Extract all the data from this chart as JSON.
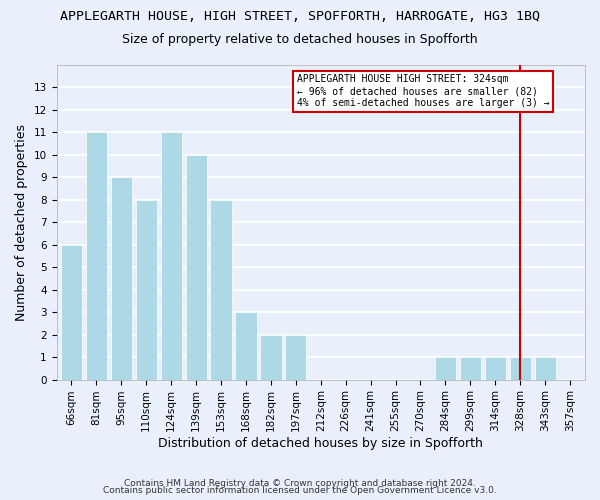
{
  "title": "APPLEGARTH HOUSE, HIGH STREET, SPOFFORTH, HARROGATE, HG3 1BQ",
  "subtitle": "Size of property relative to detached houses in Spofforth",
  "xlabel": "Distribution of detached houses by size in Spofforth",
  "ylabel": "Number of detached properties",
  "footer1": "Contains HM Land Registry data © Crown copyright and database right 2024.",
  "footer2": "Contains public sector information licensed under the Open Government Licence v3.0.",
  "categories": [
    "66sqm",
    "81sqm",
    "95sqm",
    "110sqm",
    "124sqm",
    "139sqm",
    "153sqm",
    "168sqm",
    "182sqm",
    "197sqm",
    "212sqm",
    "226sqm",
    "241sqm",
    "255sqm",
    "270sqm",
    "284sqm",
    "299sqm",
    "314sqm",
    "328sqm",
    "343sqm",
    "357sqm"
  ],
  "values": [
    6,
    11,
    9,
    8,
    11,
    10,
    8,
    3,
    2,
    2,
    0,
    0,
    0,
    0,
    0,
    1,
    1,
    1,
    1,
    1,
    0
  ],
  "highlight_index": 18,
  "bar_color_normal": "#add8e6",
  "annotation_text": "APPLEGARTH HOUSE HIGH STREET: 324sqm\n← 96% of detached houses are smaller (82)\n4% of semi-detached houses are larger (3) →",
  "annotation_box_color": "#ffffff",
  "annotation_box_edge": "#cc0000",
  "annotation_line_color": "#cc0000",
  "ylim": [
    0,
    14
  ],
  "yticks": [
    0,
    1,
    2,
    3,
    4,
    5,
    6,
    7,
    8,
    9,
    10,
    11,
    12,
    13
  ],
  "background_color": "#eaf0fb",
  "grid_color": "#ffffff",
  "title_fontsize": 9.5,
  "subtitle_fontsize": 9,
  "axis_label_fontsize": 9,
  "tick_fontsize": 7.5,
  "footer_fontsize": 6.5
}
